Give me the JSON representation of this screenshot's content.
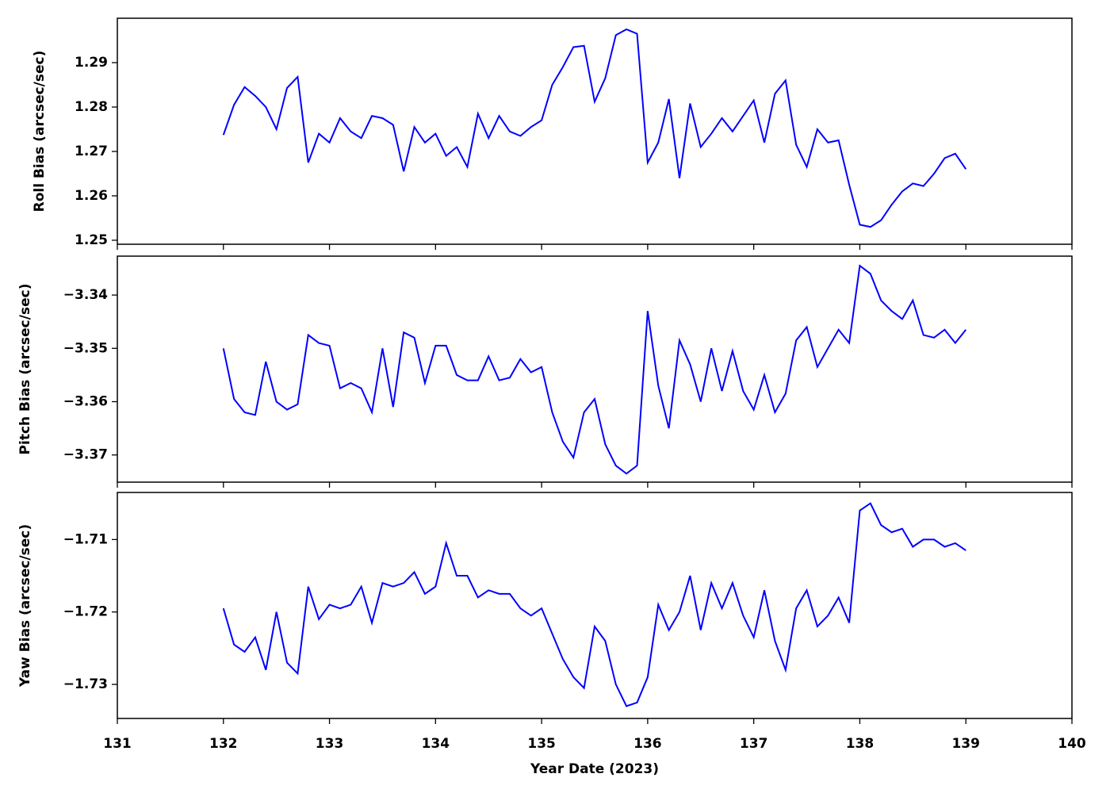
{
  "chart_data": [
    {
      "type": "line",
      "ylabel": "Roll Bias (arcsec/sec)",
      "color": "#0000ff",
      "x": [
        132.0,
        132.1,
        132.2,
        132.3,
        132.4,
        132.5,
        132.6,
        132.7,
        132.8,
        132.9,
        133.0,
        133.1,
        133.2,
        133.3,
        133.4,
        133.5,
        133.6,
        133.7,
        133.8,
        133.9,
        134.0,
        134.1,
        134.2,
        134.3,
        134.4,
        134.5,
        134.6,
        134.7,
        134.8,
        134.9,
        135.0,
        135.1,
        135.2,
        135.3,
        135.4,
        135.5,
        135.6,
        135.7,
        135.8,
        135.9,
        136.0,
        136.1,
        136.2,
        136.3,
        136.4,
        136.5,
        136.6,
        136.7,
        136.8,
        136.9,
        137.0,
        137.1,
        137.2,
        137.3,
        137.4,
        137.5,
        137.6,
        137.7,
        137.8,
        137.9,
        138.0,
        138.1,
        138.2,
        138.3,
        138.4,
        138.5,
        138.6,
        138.7,
        138.8,
        138.9,
        139.0
      ],
      "values": [
        1.2737,
        1.2805,
        1.2845,
        1.2825,
        1.28,
        1.275,
        1.2843,
        1.2868,
        1.2675,
        1.274,
        1.272,
        1.2775,
        1.2745,
        1.273,
        1.278,
        1.2775,
        1.276,
        1.2655,
        1.2755,
        1.272,
        1.274,
        1.269,
        1.271,
        1.2665,
        1.2785,
        1.273,
        1.278,
        1.2745,
        1.2735,
        1.2755,
        1.277,
        1.285,
        1.289,
        1.2935,
        1.2938,
        1.2812,
        1.2865,
        1.2962,
        1.2975,
        1.2965,
        1.2675,
        1.272,
        1.2818,
        1.264,
        1.2808,
        1.271,
        1.274,
        1.2775,
        1.2745,
        1.278,
        1.2815,
        1.272,
        1.283,
        1.286,
        1.2715,
        1.2665,
        1.275,
        1.272,
        1.2725,
        1.2625,
        1.2535,
        1.253,
        1.2545,
        1.258,
        1.261,
        1.2628,
        1.2622,
        1.265,
        1.2685,
        1.2695,
        1.266
      ],
      "ylim": [
        1.2491,
        1.3
      ],
      "yticks": [
        1.25,
        1.26,
        1.27,
        1.28,
        1.29
      ],
      "xlim": [
        131,
        140
      ],
      "xticks": [
        131,
        132,
        133,
        134,
        135,
        136,
        137,
        138,
        139,
        140
      ]
    },
    {
      "type": "line",
      "ylabel": "Pitch Bias (arcsec/sec)",
      "color": "#0000ff",
      "x": [
        132.0,
        132.1,
        132.2,
        132.3,
        132.4,
        132.5,
        132.6,
        132.7,
        132.8,
        132.9,
        133.0,
        133.1,
        133.2,
        133.3,
        133.4,
        133.5,
        133.6,
        133.7,
        133.8,
        133.9,
        134.0,
        134.1,
        134.2,
        134.3,
        134.4,
        134.5,
        134.6,
        134.7,
        134.8,
        134.9,
        135.0,
        135.1,
        135.2,
        135.3,
        135.4,
        135.5,
        135.6,
        135.7,
        135.8,
        135.9,
        136.0,
        136.1,
        136.2,
        136.3,
        136.4,
        136.5,
        136.6,
        136.7,
        136.8,
        136.9,
        137.0,
        137.1,
        137.2,
        137.3,
        137.4,
        137.5,
        137.6,
        137.7,
        137.8,
        137.9,
        138.0,
        138.1,
        138.2,
        138.3,
        138.4,
        138.5,
        138.6,
        138.7,
        138.8,
        138.9,
        139.0
      ],
      "values": [
        -3.35,
        -3.3595,
        -3.362,
        -3.3625,
        -3.3525,
        -3.36,
        -3.3615,
        -3.3605,
        -3.3475,
        -3.349,
        -3.3495,
        -3.3575,
        -3.3565,
        -3.3575,
        -3.362,
        -3.35,
        -3.361,
        -3.347,
        -3.348,
        -3.3565,
        -3.3495,
        -3.3495,
        -3.355,
        -3.356,
        -3.356,
        -3.3515,
        -3.356,
        -3.3555,
        -3.352,
        -3.3545,
        -3.3535,
        -3.362,
        -3.3675,
        -3.3705,
        -3.362,
        -3.3595,
        -3.368,
        -3.372,
        -3.3735,
        -3.372,
        -3.343,
        -3.357,
        -3.365,
        -3.3485,
        -3.353,
        -3.36,
        -3.35,
        -3.358,
        -3.3505,
        -3.358,
        -3.3615,
        -3.355,
        -3.362,
        -3.3585,
        -3.3485,
        -3.346,
        -3.3535,
        -3.35,
        -3.3465,
        -3.349,
        -3.3345,
        -3.336,
        -3.341,
        -3.343,
        -3.3445,
        -3.341,
        -3.3475,
        -3.348,
        -3.3465,
        -3.349,
        -3.3465
      ],
      "ylim": [
        -3.3751,
        -3.3327
      ],
      "yticks": [
        {
          "value": -3.37,
          "label": "−3.37"
        },
        {
          "value": -3.36,
          "label": "−3.36"
        },
        {
          "value": -3.35,
          "label": "−3.35"
        },
        {
          "value": -3.34,
          "label": "−3.34"
        }
      ],
      "xlim": [
        131,
        140
      ],
      "xticks": [
        131,
        132,
        133,
        134,
        135,
        136,
        137,
        138,
        139,
        140
      ]
    },
    {
      "type": "line",
      "ylabel": "Yaw Bias (arcsec/sec)",
      "xlabel": "Year Date (2023)",
      "color": "#0000ff",
      "x": [
        132.0,
        132.1,
        132.2,
        132.3,
        132.4,
        132.5,
        132.6,
        132.7,
        132.8,
        132.9,
        133.0,
        133.1,
        133.2,
        133.3,
        133.4,
        133.5,
        133.6,
        133.7,
        133.8,
        133.9,
        134.0,
        134.1,
        134.2,
        134.3,
        134.4,
        134.5,
        134.6,
        134.7,
        134.8,
        134.9,
        135.0,
        135.1,
        135.2,
        135.3,
        135.4,
        135.5,
        135.6,
        135.7,
        135.8,
        135.9,
        136.0,
        136.1,
        136.2,
        136.3,
        136.4,
        136.5,
        136.6,
        136.7,
        136.8,
        136.9,
        137.0,
        137.1,
        137.2,
        137.3,
        137.4,
        137.5,
        137.6,
        137.7,
        137.8,
        137.9,
        138.0,
        138.1,
        138.2,
        138.3,
        138.4,
        138.5,
        138.6,
        138.7,
        138.8,
        138.9,
        139.0
      ],
      "values": [
        -1.7195,
        -1.7245,
        -1.7255,
        -1.7235,
        -1.728,
        -1.72,
        -1.727,
        -1.7285,
        -1.7165,
        -1.721,
        -1.719,
        -1.7195,
        -1.719,
        -1.7165,
        -1.7215,
        -1.716,
        -1.7165,
        -1.716,
        -1.7145,
        -1.7175,
        -1.7165,
        -1.7105,
        -1.715,
        -1.715,
        -1.718,
        -1.717,
        -1.7175,
        -1.7175,
        -1.7195,
        -1.7205,
        -1.7195,
        -1.723,
        -1.7265,
        -1.729,
        -1.7305,
        -1.722,
        -1.724,
        -1.73,
        -1.733,
        -1.7325,
        -1.729,
        -1.719,
        -1.7225,
        -1.72,
        -1.715,
        -1.7225,
        -1.716,
        -1.7195,
        -1.716,
        -1.7205,
        -1.7235,
        -1.717,
        -1.724,
        -1.728,
        -1.7195,
        -1.717,
        -1.722,
        -1.7205,
        -1.718,
        -1.7215,
        -1.706,
        -1.705,
        -1.708,
        -1.709,
        -1.7085,
        -1.711,
        -1.71,
        -1.71,
        -1.711,
        -1.7105,
        -1.7115
      ],
      "ylim": [
        -1.7347,
        -1.7035
      ],
      "yticks": [
        {
          "value": -1.73,
          "label": "−1.73"
        },
        {
          "value": -1.72,
          "label": "−1.72"
        },
        {
          "value": -1.71,
          "label": "−1.71"
        }
      ],
      "xlim": [
        131,
        140
      ],
      "xticks": [
        131,
        132,
        133,
        134,
        135,
        136,
        137,
        138,
        139,
        140
      ]
    }
  ]
}
